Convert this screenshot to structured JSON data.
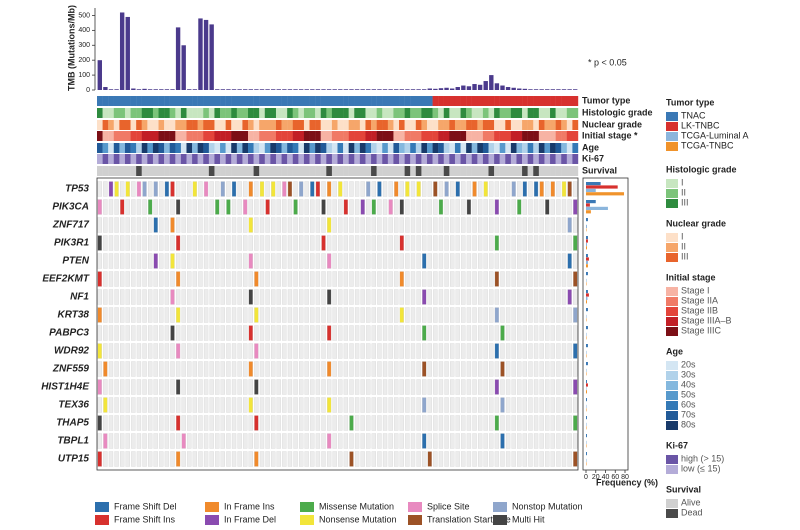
{
  "chart_data": [
    {
      "type": "bar",
      "y_label": "TMB (Mutations/Mb)",
      "color": "#4b3a8c",
      "values": [
        200,
        20,
        5,
        5,
        520,
        490,
        10,
        5,
        8,
        5,
        5,
        5,
        5,
        5,
        420,
        300,
        5,
        5,
        480,
        470,
        440,
        5,
        5,
        5,
        5,
        5,
        5,
        5,
        5,
        5,
        5,
        5,
        5,
        5,
        5,
        5,
        5,
        5,
        5,
        5,
        5,
        5,
        5,
        5,
        5,
        5,
        5,
        5,
        5,
        5,
        5,
        5,
        5,
        5,
        5,
        5,
        5,
        5,
        5,
        10,
        8,
        12,
        15,
        10,
        20,
        30,
        25,
        40,
        35,
        60,
        100,
        45,
        30,
        20,
        15,
        10,
        8,
        5,
        5,
        5,
        5,
        5,
        5,
        5,
        5,
        5
      ],
      "ylim": [
        0,
        550
      ],
      "yticks": [
        0,
        100,
        200,
        300,
        400,
        500
      ],
      "annotation": "* p < 0.05"
    },
    {
      "type": "hbar",
      "x_label": "Frequency (%)",
      "categories": [
        "TP53",
        "PIK3CA",
        "ZNF717",
        "PIK3R1",
        "PTEN",
        "EEF2KMT",
        "NF1",
        "KRT38",
        "PABPC3",
        "WDR92",
        "ZNF559",
        "HIST1H4E",
        "TEX36",
        "THAP5",
        "TBPL1",
        "UTP15"
      ],
      "series": [
        {
          "name": "TNAC",
          "color": "#3a78b5",
          "values": [
            30,
            20,
            4,
            4,
            4,
            4,
            4,
            4,
            4,
            4,
            4,
            2,
            2,
            2,
            2,
            2
          ]
        },
        {
          "name": "LK-TNBC",
          "color": "#d7312e",
          "values": [
            65,
            8,
            0,
            4,
            6,
            0,
            6,
            0,
            0,
            0,
            0,
            4,
            0,
            0,
            0,
            0
          ]
        },
        {
          "name": "TCGA-Luminal A",
          "color": "#8bb5dc",
          "values": [
            20,
            45,
            2,
            2,
            4,
            1,
            3,
            1,
            1,
            1,
            1,
            1,
            1,
            1,
            1,
            1
          ]
        },
        {
          "name": "TCGA-TNBC",
          "color": "#f0932b",
          "values": [
            78,
            10,
            1,
            2,
            4,
            1,
            2,
            1,
            1,
            1,
            1,
            2,
            1,
            1,
            1,
            1
          ]
        }
      ],
      "xlim": [
        0,
        80
      ],
      "xticks": [
        0,
        20,
        40,
        60,
        80
      ]
    }
  ],
  "tracks": [
    "Tumor type",
    "Histologic grade",
    "Nuclear grade",
    "Initial stage *",
    "Age",
    "Ki-67",
    "Survival"
  ],
  "tumor_legend_title": "Tumor type",
  "legends": [
    {
      "title": "Histologic grade",
      "items": [
        {
          "label": "I",
          "color": "#c7e6c0"
        },
        {
          "label": "II",
          "color": "#7cc47a"
        },
        {
          "label": "III",
          "color": "#2e8b3e"
        }
      ]
    },
    {
      "title": "Nuclear grade",
      "items": [
        {
          "label": "I",
          "color": "#fde0c8"
        },
        {
          "label": "II",
          "color": "#f6a66a"
        },
        {
          "label": "III",
          "color": "#e8642c"
        }
      ]
    },
    {
      "title": "Initial stage",
      "items": [
        {
          "label": "Stage I",
          "color": "#f7b3a4"
        },
        {
          "label": "Stage IIA",
          "color": "#f07a66"
        },
        {
          "label": "Stage IIB",
          "color": "#e3443a"
        },
        {
          "label": "Stage IIIA–B",
          "color": "#c21f26"
        },
        {
          "label": "Stage IIIC",
          "color": "#7c0f16"
        }
      ]
    },
    {
      "title": "Age",
      "items": [
        {
          "label": "20s",
          "color": "#d4e6f3"
        },
        {
          "label": "30s",
          "color": "#b1d2ea"
        },
        {
          "label": "40s",
          "color": "#84b8de"
        },
        {
          "label": "50s",
          "color": "#5799cc"
        },
        {
          "label": "60s",
          "color": "#3479b6"
        },
        {
          "label": "70s",
          "color": "#215a98"
        },
        {
          "label": "80s",
          "color": "#183a6a"
        }
      ]
    },
    {
      "title": "Ki-67",
      "items": [
        {
          "label": "high (> 15)",
          "color": "#6a55a6"
        },
        {
          "label": "low (≤ 15)",
          "color": "#b4acd8"
        }
      ]
    },
    {
      "title": "Survival",
      "items": [
        {
          "label": "Alive",
          "color": "#d0d0d0"
        },
        {
          "label": "Dead",
          "color": "#4a4a4a"
        }
      ]
    }
  ],
  "mutation_legend": [
    {
      "label": "Frame Shift Del",
      "color": "#2c6fad"
    },
    {
      "label": "In Frame Ins",
      "color": "#f08a2c"
    },
    {
      "label": "Missense Mutation",
      "color": "#4cab4b"
    },
    {
      "label": "Splice Site",
      "color": "#e88ac0"
    },
    {
      "label": "Nonstop Mutation",
      "color": "#8fa6cc"
    },
    {
      "label": "Frame Shift Ins",
      "color": "#d7312e"
    },
    {
      "label": "In Frame Del",
      "color": "#8a4bb0"
    },
    {
      "label": "Nonsense Mutation",
      "color": "#f2e53a"
    },
    {
      "label": "Translation Start Site",
      "color": "#9c5226"
    },
    {
      "label": "Multi Hit",
      "color": "#444444"
    }
  ]
}
